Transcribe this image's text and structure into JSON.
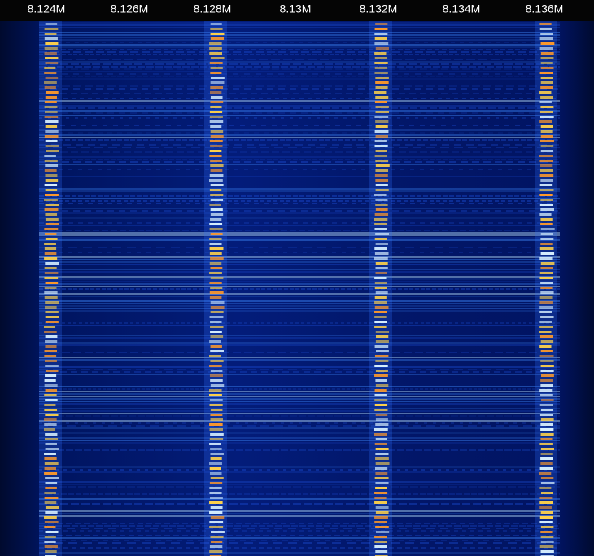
{
  "frequency_axis": {
    "ticks": [
      "8.124M",
      "8.126M",
      "8.128M",
      "8.13M",
      "8.132M",
      "8.134M",
      "8.136M"
    ]
  }
}
